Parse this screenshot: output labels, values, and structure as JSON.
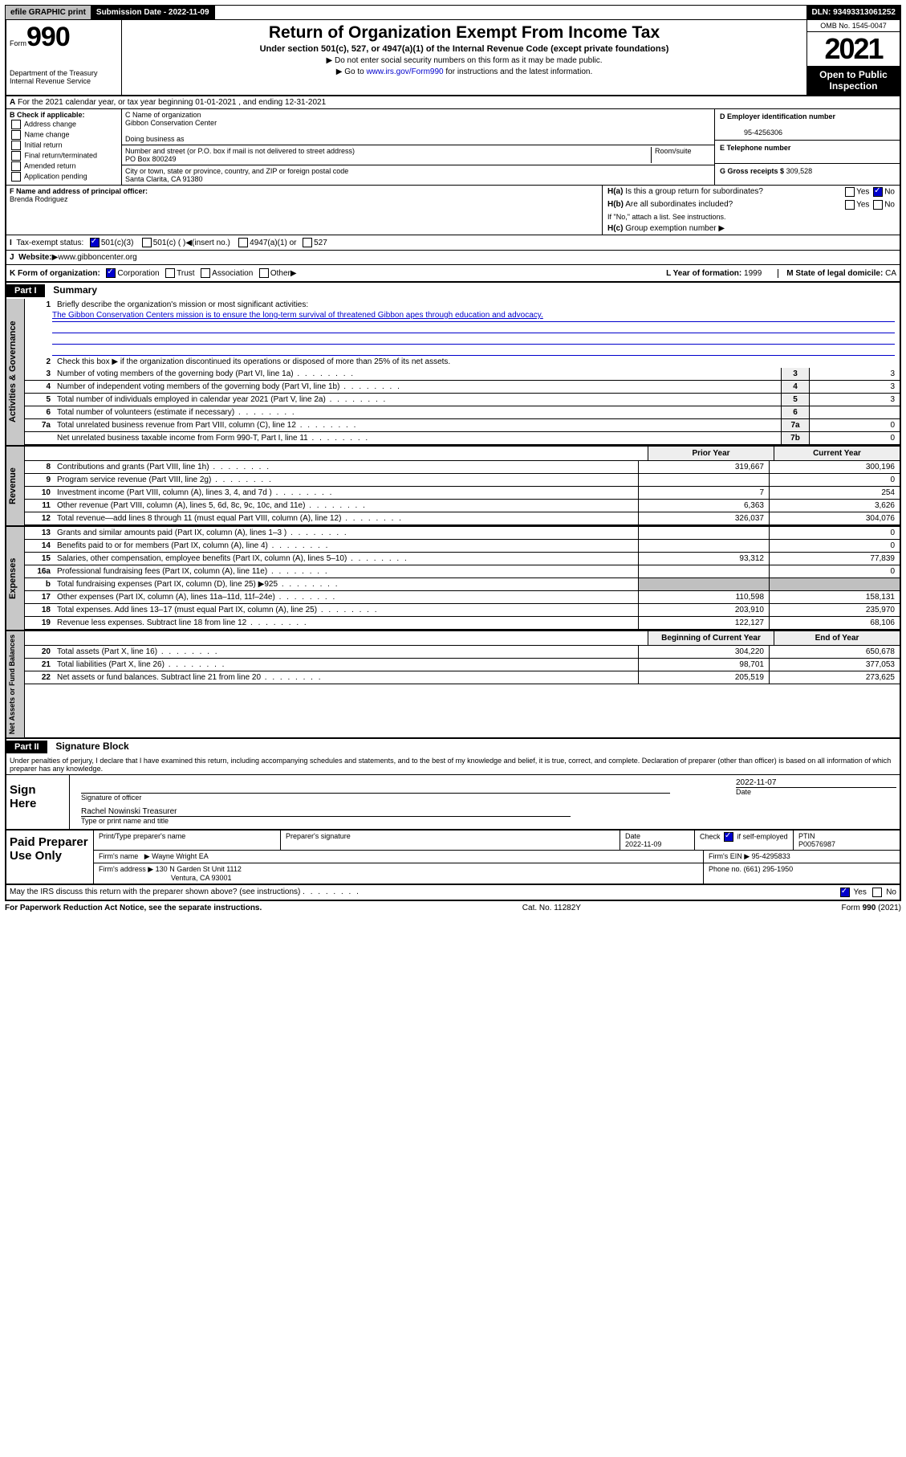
{
  "topbar": {
    "efile": "efile GRAPHIC print",
    "submission": "Submission Date - 2022-11-09",
    "dln": "DLN: 93493313061252"
  },
  "header": {
    "form_label": "Form",
    "form_number": "990",
    "title": "Return of Organization Exempt From Income Tax",
    "subtitle": "Under section 501(c), 527, or 4947(a)(1) of the Internal Revenue Code (except private foundations)",
    "note1": "Do not enter social security numbers on this form as it may be made public.",
    "note2_prefix": "Go to ",
    "note2_link": "www.irs.gov/Form990",
    "note2_suffix": " for instructions and the latest information.",
    "dept": "Department of the Treasury\nInternal Revenue Service",
    "omb": "OMB No. 1545-0047",
    "year": "2021",
    "open": "Open to Public Inspection"
  },
  "sectionA": {
    "a_line": "For the 2021 calendar year, or tax year beginning 01-01-2021   , and ending 12-31-2021",
    "b_label": "B Check if applicable:",
    "b_opts": [
      "Address change",
      "Name change",
      "Initial return",
      "Final return/terminated",
      "Amended return",
      "Application pending"
    ],
    "c_label": "C Name of organization",
    "c_name": "Gibbon Conservation Center",
    "dba_label": "Doing business as",
    "addr_label": "Number and street (or P.O. box if mail is not delivered to street address)",
    "room_label": "Room/suite",
    "addr": "PO Box 800249",
    "city_label": "City or town, state or province, country, and ZIP or foreign postal code",
    "city": "Santa Clarita, CA  91380",
    "d_label": "D Employer identification number",
    "d_ein": "95-4256306",
    "e_label": "E Telephone number",
    "g_label": "G Gross receipts $",
    "g_val": "309,528",
    "f_label": "F Name and address of principal officer:",
    "f_name": "Brenda Rodriguez",
    "ha": "Is this a group return for subordinates?",
    "hb": "Are all subordinates included?",
    "hb_note": "If \"No,\" attach a list. See instructions.",
    "hc": "Group exemption number",
    "i_label": "Tax-exempt status:",
    "i_501c3": "501(c)(3)",
    "i_501c": "501(c) (  )",
    "i_insert": "(insert no.)",
    "i_4947": "4947(a)(1) or",
    "i_527": "527",
    "j_label": "Website:",
    "j_url": "www.gibboncenter.org",
    "k_label": "K Form of organization:",
    "k_corp": "Corporation",
    "k_trust": "Trust",
    "k_assoc": "Association",
    "k_other": "Other",
    "l_label": "L Year of formation:",
    "l_val": "1999",
    "m_label": "M State of legal domicile:",
    "m_val": "CA",
    "yes": "Yes",
    "no": "No",
    "ha_label": "H(a)",
    "hb_label": "H(b)",
    "hc_label": "H(c)"
  },
  "part1": {
    "header": "Part I",
    "title": "Summary",
    "tab_gov": "Activities & Governance",
    "tab_rev": "Revenue",
    "tab_exp": "Expenses",
    "tab_net": "Net Assets or Fund Balances",
    "q1": "Briefly describe the organization's mission or most significant activities:",
    "mission": "The Gibbon Conservation Centers mission is to ensure the long-term survival of threatened Gibbon apes through education and advocacy.",
    "q2": "Check this box ▶       if the organization discontinued its operations or disposed of more than 25% of its net assets.",
    "lines": [
      {
        "n": "3",
        "t": "Number of voting members of the governing body (Part VI, line 1a)",
        "b": "3",
        "v": "3"
      },
      {
        "n": "4",
        "t": "Number of independent voting members of the governing body (Part VI, line 1b)",
        "b": "4",
        "v": "3"
      },
      {
        "n": "5",
        "t": "Total number of individuals employed in calendar year 2021 (Part V, line 2a)",
        "b": "5",
        "v": "3"
      },
      {
        "n": "6",
        "t": "Total number of volunteers (estimate if necessary)",
        "b": "6",
        "v": ""
      },
      {
        "n": "7a",
        "t": "Total unrelated business revenue from Part VIII, column (C), line 12",
        "b": "7a",
        "v": "0"
      },
      {
        "n": "",
        "t": "Net unrelated business taxable income from Form 990-T, Part I, line 11",
        "b": "7b",
        "v": "0"
      }
    ],
    "prior_hdr": "Prior Year",
    "curr_hdr": "Current Year",
    "rev": [
      {
        "n": "8",
        "t": "Contributions and grants (Part VIII, line 1h)",
        "p": "319,667",
        "c": "300,196"
      },
      {
        "n": "9",
        "t": "Program service revenue (Part VIII, line 2g)",
        "p": "",
        "c": "0"
      },
      {
        "n": "10",
        "t": "Investment income (Part VIII, column (A), lines 3, 4, and 7d )",
        "p": "7",
        "c": "254"
      },
      {
        "n": "11",
        "t": "Other revenue (Part VIII, column (A), lines 5, 6d, 8c, 9c, 10c, and 11e)",
        "p": "6,363",
        "c": "3,626"
      },
      {
        "n": "12",
        "t": "Total revenue—add lines 8 through 11 (must equal Part VIII, column (A), line 12)",
        "p": "326,037",
        "c": "304,076"
      }
    ],
    "exp": [
      {
        "n": "13",
        "t": "Grants and similar amounts paid (Part IX, column (A), lines 1–3 )",
        "p": "",
        "c": "0"
      },
      {
        "n": "14",
        "t": "Benefits paid to or for members (Part IX, column (A), line 4)",
        "p": "",
        "c": "0"
      },
      {
        "n": "15",
        "t": "Salaries, other compensation, employee benefits (Part IX, column (A), lines 5–10)",
        "p": "93,312",
        "c": "77,839"
      },
      {
        "n": "16a",
        "t": "Professional fundraising fees (Part IX, column (A), line 11e)",
        "p": "",
        "c": "0"
      },
      {
        "n": "b",
        "t": "Total fundraising expenses (Part IX, column (D), line 25) ▶925",
        "p": "gray",
        "c": "gray"
      },
      {
        "n": "17",
        "t": "Other expenses (Part IX, column (A), lines 11a–11d, 11f–24e)",
        "p": "110,598",
        "c": "158,131"
      },
      {
        "n": "18",
        "t": "Total expenses. Add lines 13–17 (must equal Part IX, column (A), line 25)",
        "p": "203,910",
        "c": "235,970"
      },
      {
        "n": "19",
        "t": "Revenue less expenses. Subtract line 18 from line 12",
        "p": "122,127",
        "c": "68,106"
      }
    ],
    "beg_hdr": "Beginning of Current Year",
    "end_hdr": "End of Year",
    "net": [
      {
        "n": "20",
        "t": "Total assets (Part X, line 16)",
        "p": "304,220",
        "c": "650,678"
      },
      {
        "n": "21",
        "t": "Total liabilities (Part X, line 26)",
        "p": "98,701",
        "c": "377,053"
      },
      {
        "n": "22",
        "t": "Net assets or fund balances. Subtract line 21 from line 20",
        "p": "205,519",
        "c": "273,625"
      }
    ]
  },
  "part2": {
    "header": "Part II",
    "title": "Signature Block",
    "perjury": "Under penalties of perjury, I declare that I have examined this return, including accompanying schedules and statements, and to the best of my knowledge and belief, it is true, correct, and complete. Declaration of preparer (other than officer) is based on all information of which preparer has any knowledge.",
    "sign_here": "Sign Here",
    "sig_officer": "Signature of officer",
    "sig_date": "Date",
    "sig_date_val": "2022-11-07",
    "sig_name": "Rachel Nowinski Treasurer",
    "sig_type": "Type or print name and title",
    "paid": "Paid Preparer Use Only",
    "prep_name_lbl": "Print/Type preparer's name",
    "prep_sig_lbl": "Preparer's signature",
    "prep_date_lbl": "Date",
    "prep_date": "2022-11-09",
    "check_lbl": "Check",
    "self_emp": "if self-employed",
    "ptin_lbl": "PTIN",
    "ptin": "P00576987",
    "firm_name_lbl": "Firm's name",
    "firm_name": "Wayne Wright EA",
    "firm_ein_lbl": "Firm's EIN",
    "firm_ein": "95-4295833",
    "firm_addr_lbl": "Firm's address",
    "firm_addr1": "130 N Garden St Unit 1112",
    "firm_addr2": "Ventura, CA  93001",
    "phone_lbl": "Phone no.",
    "phone": "(661) 295-1950",
    "may_irs": "May the IRS discuss this return with the preparer shown above? (see instructions)"
  },
  "footer": {
    "left": "For Paperwork Reduction Act Notice, see the separate instructions.",
    "center": "Cat. No. 11282Y",
    "right": "Form 990 (2021)",
    "right_bold": "990"
  }
}
